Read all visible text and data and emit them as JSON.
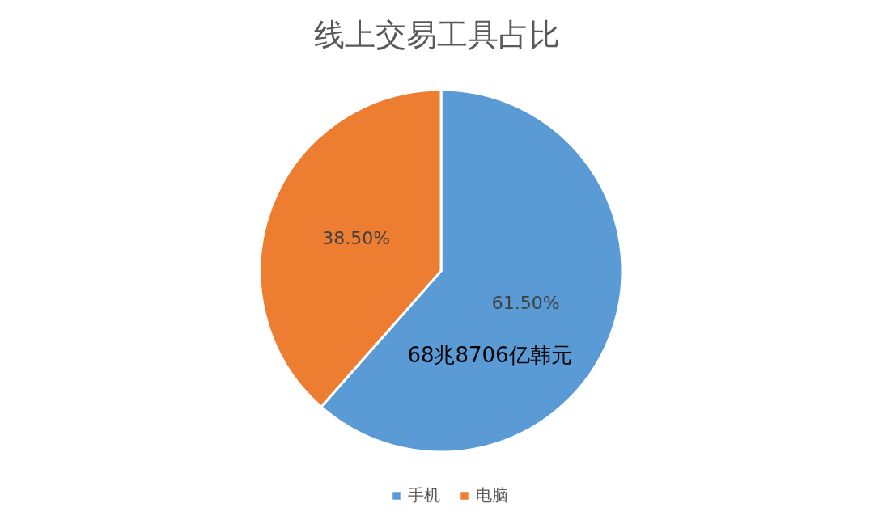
{
  "chart_data": {
    "type": "pie",
    "title": "线上交易工具占比",
    "categories": [
      "手机",
      "电脑"
    ],
    "values": [
      61.5,
      38.5
    ],
    "colors": [
      "#5b9bd5",
      "#ed7d31"
    ],
    "value_labels": [
      "61.50%",
      "38.50%"
    ],
    "annotations": [
      "68兆8706亿韩元"
    ],
    "legend": "bottom"
  }
}
